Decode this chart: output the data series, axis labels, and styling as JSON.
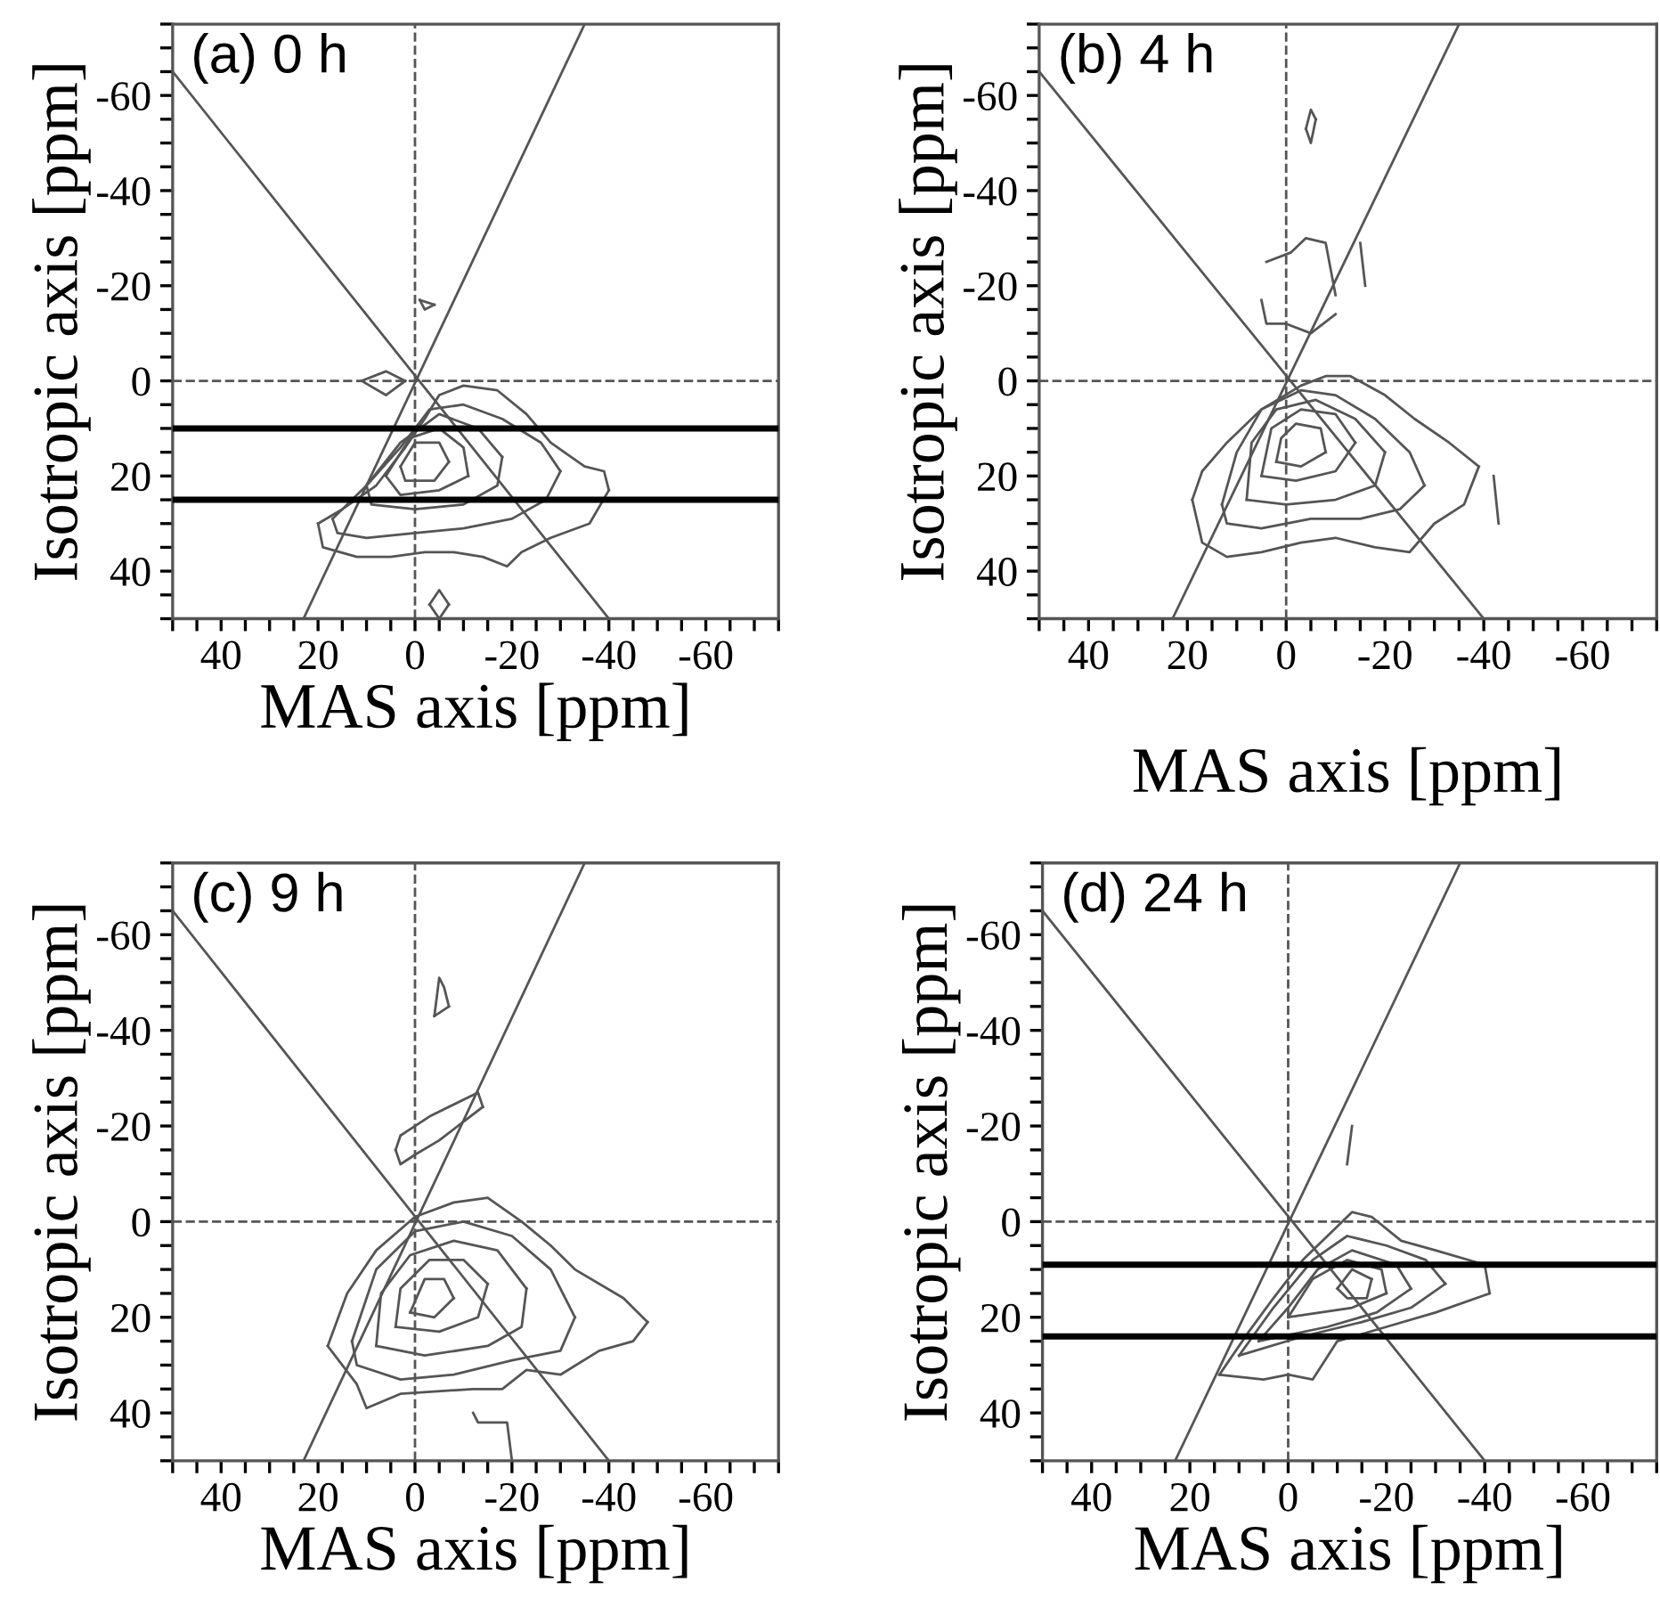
{
  "chart_data": [
    {
      "type": "line",
      "title": "(a) 0 h",
      "xlabel": "MAS axis [ppm]",
      "ylabel": "Isotropic axis [ppm]",
      "xlim": [
        50,
        -75
      ],
      "ylim": [
        50,
        -75
      ],
      "xticks": [
        {
          "value": 50,
          "label": null
        },
        {
          "value": 45,
          "label": null
        },
        40,
        {
          "value": 35,
          "label": null
        },
        {
          "value": 30,
          "label": null
        },
        {
          "value": 25,
          "label": null
        },
        20,
        {
          "value": 15,
          "label": null
        },
        {
          "value": 10,
          "label": null
        },
        {
          "value": 5,
          "label": null
        },
        0,
        {
          "value": -5,
          "label": null
        },
        {
          "value": -10,
          "label": null
        },
        {
          "value": -15,
          "label": null
        },
        -20,
        {
          "value": -25,
          "label": null
        },
        {
          "value": -30,
          "label": null
        },
        {
          "value": -35,
          "label": null
        },
        -40,
        {
          "value": -45,
          "label": null
        },
        {
          "value": -50,
          "label": null
        },
        {
          "value": -55,
          "label": null
        },
        -60,
        {
          "value": -65,
          "label": null
        },
        {
          "value": -70,
          "label": null
        },
        {
          "value": -75,
          "label": null
        }
      ],
      "yticks": [
        {
          "value": 50,
          "label": null
        },
        {
          "value": 45,
          "label": null
        },
        40,
        {
          "value": 35,
          "label": null
        },
        {
          "value": 30,
          "label": null
        },
        {
          "value": 25,
          "label": null
        },
        20,
        {
          "value": 15,
          "label": null
        },
        {
          "value": 10,
          "label": null
        },
        {
          "value": 5,
          "label": null
        },
        0,
        {
          "value": -5,
          "label": null
        },
        {
          "value": -10,
          "label": null
        },
        {
          "value": -15,
          "label": null
        },
        -20,
        {
          "value": -25,
          "label": null
        },
        {
          "value": -30,
          "label": null
        },
        {
          "value": -35,
          "label": null
        },
        -40,
        {
          "value": -45,
          "label": null
        },
        {
          "value": -50,
          "label": null
        },
        {
          "value": -55,
          "label": null
        },
        -60,
        {
          "value": -65,
          "label": null
        },
        {
          "value": -70,
          "label": null
        },
        {
          "value": -75,
          "label": null
        }
      ],
      "ref_lines": [
        {
          "axis": "x",
          "value": 0,
          "line_style": "dashed",
          "color": "#555555"
        },
        {
          "axis": "y",
          "value": 0,
          "line_style": "dashed",
          "color": "#555555"
        },
        {
          "axis": "y",
          "value": 10,
          "line_style": "solid",
          "color": "#000000"
        },
        {
          "axis": "y",
          "value": 25,
          "line_style": "solid",
          "color": "#000000"
        }
      ],
      "series": [
        {
          "color": "#555555",
          "x": [
            50,
            -40
          ],
          "values": [
            -65,
            50
          ]
        },
        {
          "color": "#555555",
          "x": [
            23,
            -35
          ],
          "values": [
            50,
            -75
          ]
        },
        {
          "color": "#555555",
          "x": [
            20,
            15,
            8,
            2,
            -2,
            -5,
            -10,
            -17,
            -23,
            -28,
            -35,
            -39,
            -40
          ],
          "values": [
            30,
            27,
            22,
            14,
            8,
            3,
            1,
            2,
            7,
            13,
            18,
            19,
            23
          ]
        },
        {
          "color": "#555555",
          "x": [
            -40,
            -36,
            -28,
            -22,
            -19,
            -14,
            -8,
            -2,
            5,
            12,
            19,
            20
          ],
          "values": [
            23,
            30,
            33,
            36,
            39,
            37,
            36,
            36,
            37,
            37,
            35,
            30
          ]
        },
        {
          "color": "#555555",
          "x": [
            17,
            10,
            3,
            -3,
            -10,
            -18,
            -26,
            -30
          ],
          "values": [
            29,
            22,
            14,
            6,
            5,
            8,
            13,
            19
          ]
        },
        {
          "color": "#555555",
          "x": [
            -30,
            -27,
            -20,
            -10,
            0,
            10,
            16,
            17
          ],
          "values": [
            19,
            25,
            29,
            31,
            32,
            33,
            32,
            29
          ]
        },
        {
          "color": "#555555",
          "x": [
            10,
            3,
            -5,
            -13,
            -18
          ],
          "values": [
            22,
            13,
            7,
            10,
            16
          ]
        },
        {
          "color": "#555555",
          "x": [
            -18,
            -17,
            -10,
            0,
            9,
            10
          ],
          "values": [
            16,
            22,
            26,
            27,
            26,
            22
          ]
        },
        {
          "color": "#555555",
          "x": [
            6,
            1,
            -5,
            -10,
            -11
          ],
          "values": [
            20,
            12,
            10,
            14,
            20
          ]
        },
        {
          "color": "#555555",
          "x": [
            -11,
            -5,
            3,
            6
          ],
          "values": [
            20,
            23,
            24,
            20
          ]
        },
        {
          "color": "#555555",
          "x": [
            3,
            0,
            -5,
            -7
          ],
          "values": [
            18,
            13,
            13,
            17
          ]
        },
        {
          "color": "#555555",
          "x": [
            -7,
            -4,
            2,
            3
          ],
          "values": [
            17,
            21,
            21,
            18
          ]
        },
        {
          "color": "#555555",
          "x": [
            -1,
            -4
          ],
          "values": [
            -17,
            -16
          ]
        },
        {
          "color": "#555555",
          "x": [
            -4,
            -2,
            -1
          ],
          "values": [
            -16,
            -15,
            -17
          ]
        },
        {
          "color": "#555555",
          "x": [
            11,
            6,
            2
          ],
          "values": [
            0,
            -2,
            0
          ]
        },
        {
          "color": "#555555",
          "x": [
            2,
            6,
            11
          ],
          "values": [
            0,
            3,
            0
          ]
        },
        {
          "color": "#555555",
          "x": [
            -3,
            -5,
            -7
          ],
          "values": [
            47,
            44,
            47
          ]
        },
        {
          "color": "#555555",
          "x": [
            -7,
            -5,
            -3
          ],
          "values": [
            47,
            50,
            47
          ]
        }
      ]
    },
    {
      "type": "line",
      "title": "(b) 4 h",
      "xlabel": "MAS axis [ppm]",
      "ylabel": "Isotropic axis [ppm]",
      "xlim": [
        50,
        -75
      ],
      "ylim": [
        50,
        -75
      ],
      "xticks": [
        {
          "value": 50,
          "label": null
        },
        {
          "value": 45,
          "label": null
        },
        40,
        {
          "value": 35,
          "label": null
        },
        {
          "value": 30,
          "label": null
        },
        {
          "value": 25,
          "label": null
        },
        20,
        {
          "value": 15,
          "label": null
        },
        {
          "value": 10,
          "label": null
        },
        {
          "value": 5,
          "label": null
        },
        0,
        {
          "value": -5,
          "label": null
        },
        {
          "value": -10,
          "label": null
        },
        {
          "value": -15,
          "label": null
        },
        -20,
        {
          "value": -25,
          "label": null
        },
        {
          "value": -30,
          "label": null
        },
        {
          "value": -35,
          "label": null
        },
        -40,
        {
          "value": -45,
          "label": null
        },
        {
          "value": -50,
          "label": null
        },
        {
          "value": -55,
          "label": null
        },
        -60,
        {
          "value": -65,
          "label": null
        },
        {
          "value": -70,
          "label": null
        },
        {
          "value": -75,
          "label": null
        }
      ],
      "yticks": [
        {
          "value": 50,
          "label": null
        },
        {
          "value": 45,
          "label": null
        },
        40,
        {
          "value": 35,
          "label": null
        },
        {
          "value": 30,
          "label": null
        },
        {
          "value": 25,
          "label": null
        },
        20,
        {
          "value": 15,
          "label": null
        },
        {
          "value": 10,
          "label": null
        },
        {
          "value": 5,
          "label": null
        },
        0,
        {
          "value": -5,
          "label": null
        },
        {
          "value": -10,
          "label": null
        },
        {
          "value": -15,
          "label": null
        },
        -20,
        {
          "value": -25,
          "label": null
        },
        {
          "value": -30,
          "label": null
        },
        {
          "value": -35,
          "label": null
        },
        -40,
        {
          "value": -45,
          "label": null
        },
        {
          "value": -50,
          "label": null
        },
        {
          "value": -55,
          "label": null
        },
        -60,
        {
          "value": -65,
          "label": null
        },
        {
          "value": -70,
          "label": null
        },
        {
          "value": -75,
          "label": null
        }
      ],
      "ref_lines": [
        {
          "axis": "x",
          "value": 0,
          "line_style": "dashed",
          "color": "#555555"
        },
        {
          "axis": "y",
          "value": 0,
          "line_style": "dashed",
          "color": "#555555"
        }
      ],
      "series": [
        {
          "color": "#555555",
          "x": [
            50,
            -40
          ],
          "values": [
            -65,
            50
          ]
        },
        {
          "color": "#555555",
          "x": [
            23,
            -35
          ],
          "values": [
            50,
            -75
          ]
        },
        {
          "color": "#555555",
          "x": [
            19,
            17,
            12,
            5,
            -3,
            -10,
            -18,
            -25,
            -30,
            -36,
            -39
          ],
          "values": [
            25,
            34,
            37,
            36,
            34,
            33,
            35,
            36,
            30,
            26,
            18
          ]
        },
        {
          "color": "#555555",
          "x": [
            -39,
            -33,
            -26,
            -20,
            -13,
            -8,
            -3,
            5,
            12,
            17,
            19
          ],
          "values": [
            18,
            13,
            8,
            3,
            -1,
            -1,
            1,
            6,
            13,
            19,
            25
          ]
        },
        {
          "color": "#555555",
          "x": [
            5,
            4,
            0,
            -5,
            -10
          ],
          "values": [
            -17,
            -12,
            -12,
            -10,
            -14
          ]
        },
        {
          "color": "#555555",
          "x": [
            -10,
            -8,
            -4,
            -1,
            4
          ],
          "values": [
            -18,
            -29,
            -30,
            -27,
            -25
          ]
        },
        {
          "color": "#555555",
          "x": [
            13,
            12,
            5,
            -5,
            -15,
            -23,
            -28
          ],
          "values": [
            26,
            30,
            31,
            29,
            29,
            27,
            22
          ]
        },
        {
          "color": "#555555",
          "x": [
            -28,
            -25,
            -18,
            -10,
            -3,
            5,
            10,
            13
          ],
          "values": [
            22,
            15,
            8,
            3,
            2,
            6,
            15,
            26
          ]
        },
        {
          "color": "#555555",
          "x": [
            8,
            0,
            -10,
            -18,
            -20
          ],
          "values": [
            25,
            26,
            25,
            22,
            15
          ]
        },
        {
          "color": "#555555",
          "x": [
            -20,
            -14,
            -6,
            2,
            7,
            8
          ],
          "values": [
            15,
            8,
            4,
            6,
            13,
            25
          ]
        },
        {
          "color": "#555555",
          "x": [
            5,
            -2,
            -10,
            -14
          ],
          "values": [
            20,
            21,
            19,
            13
          ]
        },
        {
          "color": "#555555",
          "x": [
            -14,
            -10,
            -3,
            3,
            5
          ],
          "values": [
            13,
            7,
            6,
            10,
            20
          ]
        },
        {
          "color": "#555555",
          "x": [
            2,
            -3,
            -8
          ],
          "values": [
            17,
            18,
            15
          ]
        },
        {
          "color": "#555555",
          "x": [
            -8,
            -7,
            -2,
            1,
            2
          ],
          "values": [
            15,
            10,
            9,
            12,
            17
          ]
        },
        {
          "color": "#555555",
          "x": [
            -4,
            -5,
            -6
          ],
          "values": [
            -53,
            -57,
            -55
          ]
        },
        {
          "color": "#555555",
          "x": [
            -6,
            -5,
            -4
          ],
          "values": [
            -55,
            -50,
            -53
          ]
        },
        {
          "color": "#555555",
          "x": [
            -15,
            -16
          ],
          "values": [
            -29,
            -20
          ]
        },
        {
          "color": "#555555",
          "x": [
            -42,
            -43
          ],
          "values": [
            20,
            30
          ]
        }
      ]
    },
    {
      "type": "line",
      "title": "(c) 9 h",
      "xlabel": "MAS axis [ppm]",
      "ylabel": "Isotropic axis [ppm]",
      "xlim": [
        50,
        -75
      ],
      "ylim": [
        50,
        -75
      ],
      "xticks": [
        {
          "value": 50,
          "label": null
        },
        {
          "value": 45,
          "label": null
        },
        40,
        {
          "value": 35,
          "label": null
        },
        {
          "value": 30,
          "label": null
        },
        {
          "value": 25,
          "label": null
        },
        20,
        {
          "value": 15,
          "label": null
        },
        {
          "value": 10,
          "label": null
        },
        {
          "value": 5,
          "label": null
        },
        0,
        {
          "value": -5,
          "label": null
        },
        {
          "value": -10,
          "label": null
        },
        {
          "value": -15,
          "label": null
        },
        -20,
        {
          "value": -25,
          "label": null
        },
        {
          "value": -30,
          "label": null
        },
        {
          "value": -35,
          "label": null
        },
        -40,
        {
          "value": -45,
          "label": null
        },
        {
          "value": -50,
          "label": null
        },
        {
          "value": -55,
          "label": null
        },
        -60,
        {
          "value": -65,
          "label": null
        },
        {
          "value": -70,
          "label": null
        },
        {
          "value": -75,
          "label": null
        }
      ],
      "yticks": [
        {
          "value": 50,
          "label": null
        },
        {
          "value": 45,
          "label": null
        },
        40,
        {
          "value": 35,
          "label": null
        },
        {
          "value": 30,
          "label": null
        },
        {
          "value": 25,
          "label": null
        },
        20,
        {
          "value": 15,
          "label": null
        },
        {
          "value": 10,
          "label": null
        },
        {
          "value": 5,
          "label": null
        },
        0,
        {
          "value": -5,
          "label": null
        },
        {
          "value": -10,
          "label": null
        },
        {
          "value": -15,
          "label": null
        },
        -20,
        {
          "value": -25,
          "label": null
        },
        {
          "value": -30,
          "label": null
        },
        {
          "value": -35,
          "label": null
        },
        -40,
        {
          "value": -45,
          "label": null
        },
        {
          "value": -50,
          "label": null
        },
        {
          "value": -55,
          "label": null
        },
        -60,
        {
          "value": -65,
          "label": null
        },
        {
          "value": -70,
          "label": null
        },
        {
          "value": -75,
          "label": null
        }
      ],
      "ref_lines": [
        {
          "axis": "x",
          "value": 0,
          "line_style": "dashed",
          "color": "#555555"
        },
        {
          "axis": "y",
          "value": 0,
          "line_style": "dashed",
          "color": "#555555"
        }
      ],
      "series": [
        {
          "color": "#555555",
          "x": [
            50,
            -40
          ],
          "values": [
            -65,
            50
          ]
        },
        {
          "color": "#555555",
          "x": [
            23,
            -35
          ],
          "values": [
            50,
            -75
          ]
        },
        {
          "color": "#555555",
          "x": [
            18,
            12,
            10,
            3,
            -12,
            -18,
            -23,
            -30,
            -38,
            -45,
            -48
          ],
          "values": [
            26,
            34,
            39,
            36,
            35,
            35,
            31,
            32,
            27,
            25,
            21
          ]
        },
        {
          "color": "#555555",
          "x": [
            -48,
            -43,
            -33,
            -28,
            -22,
            -15,
            -8,
            0,
            8,
            14,
            18
          ],
          "values": [
            21,
            16,
            10,
            5,
            0,
            -5,
            -4,
            -1,
            6,
            15,
            26
          ]
        },
        {
          "color": "#555555",
          "x": [
            13,
            12,
            3,
            -8,
            -20,
            -30,
            -33
          ],
          "values": [
            25,
            30,
            33,
            32,
            29,
            27,
            20
          ]
        },
        {
          "color": "#555555",
          "x": [
            -33,
            -28,
            -20,
            -10,
            0,
            8,
            13
          ],
          "values": [
            20,
            10,
            3,
            0,
            2,
            10,
            25
          ]
        },
        {
          "color": "#555555",
          "x": [
            8,
            -2,
            -15,
            -22,
            -23
          ],
          "values": [
            26,
            28,
            26,
            22,
            14
          ]
        },
        {
          "color": "#555555",
          "x": [
            -23,
            -17,
            -8,
            1,
            7,
            8
          ],
          "values": [
            14,
            6,
            4,
            7,
            15,
            26
          ]
        },
        {
          "color": "#555555",
          "x": [
            4,
            -5,
            -13,
            -15
          ],
          "values": [
            22,
            23,
            20,
            13
          ]
        },
        {
          "color": "#555555",
          "x": [
            -15,
            -10,
            -3,
            3,
            4
          ],
          "values": [
            13,
            8,
            8,
            14,
            22
          ]
        },
        {
          "color": "#555555",
          "x": [
            1,
            -4,
            -8
          ],
          "values": [
            19,
            20,
            16
          ]
        },
        {
          "color": "#555555",
          "x": [
            -8,
            -6,
            -2,
            1
          ],
          "values": [
            16,
            12,
            12,
            19
          ]
        },
        {
          "color": "#555555",
          "x": [
            4,
            3,
            -3,
            -13,
            -14
          ],
          "values": [
            -15,
            -18,
            -22,
            -27,
            -24
          ]
        },
        {
          "color": "#555555",
          "x": [
            -14,
            -5,
            0,
            3,
            4
          ],
          "values": [
            -24,
            -17,
            -14,
            -12,
            -15
          ]
        },
        {
          "color": "#555555",
          "x": [
            -4,
            -5,
            -6,
            -7
          ],
          "values": [
            -43,
            -51,
            -49,
            -45
          ]
        },
        {
          "color": "#555555",
          "x": [
            -7,
            -4
          ],
          "values": [
            -45,
            -43
          ]
        },
        {
          "color": "#555555",
          "x": [
            -12,
            -13,
            -19,
            -20
          ],
          "values": [
            40,
            42,
            42,
            50
          ]
        }
      ]
    },
    {
      "type": "line",
      "title": "(d) 24 h",
      "xlabel": "MAS axis [ppm]",
      "ylabel": "Isotropic axis [ppm]",
      "xlim": [
        50,
        -75
      ],
      "ylim": [
        50,
        -75
      ],
      "xticks": [
        {
          "value": 50,
          "label": null
        },
        {
          "value": 45,
          "label": null
        },
        40,
        {
          "value": 35,
          "label": null
        },
        {
          "value": 30,
          "label": null
        },
        {
          "value": 25,
          "label": null
        },
        20,
        {
          "value": 15,
          "label": null
        },
        {
          "value": 10,
          "label": null
        },
        {
          "value": 5,
          "label": null
        },
        0,
        {
          "value": -5,
          "label": null
        },
        {
          "value": -10,
          "label": null
        },
        {
          "value": -15,
          "label": null
        },
        -20,
        {
          "value": -25,
          "label": null
        },
        {
          "value": -30,
          "label": null
        },
        {
          "value": -35,
          "label": null
        },
        -40,
        {
          "value": -45,
          "label": null
        },
        {
          "value": -50,
          "label": null
        },
        {
          "value": -55,
          "label": null
        },
        -60,
        {
          "value": -65,
          "label": null
        },
        {
          "value": -70,
          "label": null
        },
        {
          "value": -75,
          "label": null
        }
      ],
      "yticks": [
        {
          "value": 50,
          "label": null
        },
        {
          "value": 45,
          "label": null
        },
        40,
        {
          "value": 35,
          "label": null
        },
        {
          "value": 30,
          "label": null
        },
        {
          "value": 25,
          "label": null
        },
        20,
        {
          "value": 15,
          "label": null
        },
        {
          "value": 10,
          "label": null
        },
        {
          "value": 5,
          "label": null
        },
        0,
        {
          "value": -5,
          "label": null
        },
        {
          "value": -10,
          "label": null
        },
        {
          "value": -15,
          "label": null
        },
        -20,
        {
          "value": -25,
          "label": null
        },
        {
          "value": -30,
          "label": null
        },
        {
          "value": -35,
          "label": null
        },
        -40,
        {
          "value": -45,
          "label": null
        },
        {
          "value": -50,
          "label": null
        },
        {
          "value": -55,
          "label": null
        },
        -60,
        {
          "value": -65,
          "label": null
        },
        {
          "value": -70,
          "label": null
        },
        {
          "value": -75,
          "label": null
        }
      ],
      "ref_lines": [
        {
          "axis": "x",
          "value": 0,
          "line_style": "dashed",
          "color": "#555555"
        },
        {
          "axis": "y",
          "value": 0,
          "line_style": "dashed",
          "color": "#555555"
        },
        {
          "axis": "y",
          "value": 9,
          "line_style": "solid",
          "color": "#000000"
        },
        {
          "axis": "y",
          "value": 24,
          "line_style": "solid",
          "color": "#000000"
        }
      ],
      "series": [
        {
          "color": "#555555",
          "x": [
            50,
            -40
          ],
          "values": [
            -65,
            50
          ]
        },
        {
          "color": "#555555",
          "x": [
            23,
            -35
          ],
          "values": [
            50,
            -75
          ]
        },
        {
          "color": "#555555",
          "x": [
            14,
            12,
            8,
            3,
            -3,
            -8,
            -13,
            -17,
            -23,
            -30,
            -40,
            -41
          ],
          "values": [
            32,
            29,
            23,
            16,
            8,
            3,
            -2,
            -1,
            4,
            6,
            9,
            15
          ]
        },
        {
          "color": "#555555",
          "x": [
            -41,
            -30,
            -20,
            -10,
            -5,
            0,
            5,
            14
          ],
          "values": [
            15,
            19,
            22,
            25,
            33,
            32,
            33,
            32
          ]
        },
        {
          "color": "#555555",
          "x": [
            10,
            3,
            -5,
            -12,
            -20,
            -28,
            -32
          ],
          "values": [
            28,
            18,
            8,
            3,
            5,
            8,
            13
          ]
        },
        {
          "color": "#555555",
          "x": [
            -32,
            -25,
            -15,
            -3,
            10
          ],
          "values": [
            13,
            18,
            21,
            24,
            28
          ]
        },
        {
          "color": "#555555",
          "x": [
            6,
            0,
            -6,
            -13,
            -22,
            -25
          ],
          "values": [
            25,
            18,
            10,
            6,
            9,
            14
          ]
        },
        {
          "color": "#555555",
          "x": [
            -25,
            -18,
            -8,
            6
          ],
          "values": [
            14,
            19,
            22,
            25
          ]
        },
        {
          "color": "#555555",
          "x": [
            0,
            -5,
            -12,
            -19,
            -20
          ],
          "values": [
            20,
            12,
            8,
            10,
            15
          ]
        },
        {
          "color": "#555555",
          "x": [
            -20,
            -13,
            0
          ],
          "values": [
            15,
            18,
            20
          ]
        },
        {
          "color": "#555555",
          "x": [
            -10,
            -13,
            -17
          ],
          "values": [
            14,
            10,
            12
          ]
        },
        {
          "color": "#555555",
          "x": [
            -17,
            -16,
            -12,
            -10
          ],
          "values": [
            12,
            16,
            16,
            14
          ]
        },
        {
          "color": "#555555",
          "x": [
            -12,
            -13
          ],
          "values": [
            -12,
            -20
          ]
        }
      ]
    }
  ]
}
